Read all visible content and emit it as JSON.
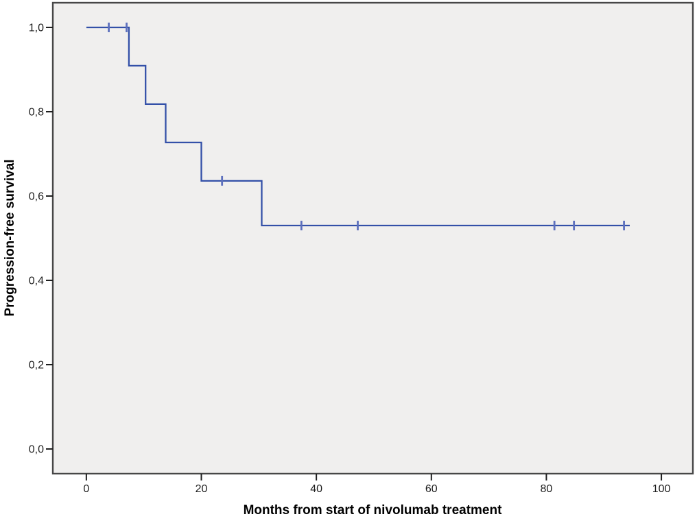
{
  "chart_data": {
    "type": "line",
    "subtype": "kaplan_meier_step",
    "title": "",
    "xlabel": "Months from start of nivolumab treatment",
    "ylabel": "Progression-free survival",
    "xlim": [
      -5.83,
      105.48
    ],
    "ylim": [
      -0.0585,
      1.0585
    ],
    "x_ticks": [
      0,
      20,
      40,
      60,
      80,
      100
    ],
    "x_tick_labels": [
      "0",
      "20",
      "40",
      "60",
      "80",
      "100"
    ],
    "y_ticks": [
      0.0,
      0.2,
      0.4,
      0.6,
      0.8,
      1.0
    ],
    "y_tick_labels": [
      "0,0",
      "0,2",
      "0,4",
      "0,6",
      "0,8",
      "1,0"
    ],
    "grid": false,
    "legend": false,
    "series": [
      {
        "name": "Progression-free survival",
        "color": "#3350a8",
        "step_points": [
          [
            0,
            1.0
          ],
          [
            7.4,
            1.0
          ],
          [
            7.4,
            0.909
          ],
          [
            10.3,
            0.909
          ],
          [
            10.3,
            0.818
          ],
          [
            13.8,
            0.818
          ],
          [
            13.8,
            0.727
          ],
          [
            20.0,
            0.727
          ],
          [
            20.0,
            0.636
          ],
          [
            30.5,
            0.636
          ],
          [
            30.5,
            0.53
          ],
          [
            94.5,
            0.53
          ]
        ],
        "censor_marks": [
          [
            3.9,
            1.0
          ],
          [
            7.0,
            1.0
          ],
          [
            23.6,
            0.636
          ],
          [
            37.4,
            0.53
          ],
          [
            47.2,
            0.53
          ],
          [
            81.4,
            0.53
          ],
          [
            84.8,
            0.53
          ],
          [
            93.5,
            0.53
          ]
        ],
        "event_times_months": [
          7.4,
          10.3,
          13.8,
          20.0,
          30.5
        ],
        "survival_after_events": [
          0.909,
          0.818,
          0.727,
          0.636,
          0.53
        ]
      }
    ]
  },
  "style": {
    "curve_color": "#3350a8",
    "censor_color": "#5d70bd",
    "plot_background": "#f0efee",
    "plot_border": "#474747",
    "tick_color": "#1f1f1f",
    "tick_label_color": "#1c1c1c",
    "axis_title_color": "#000000",
    "page_background": "#ffffff"
  }
}
